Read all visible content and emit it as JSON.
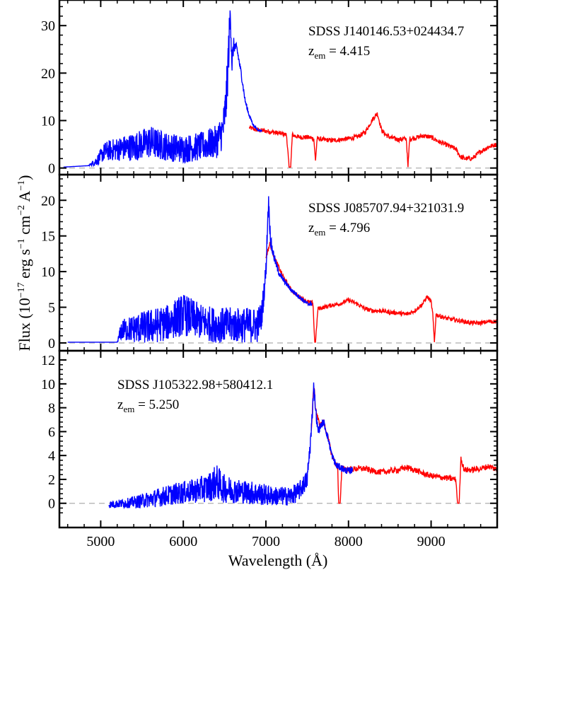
{
  "chart_data": {
    "type": "line",
    "xlabel": "Wavelength (Å)",
    "ylabel_parts": {
      "flux": "Flux (10",
      "exp": "−17",
      "erg": " erg s",
      "s_exp": "−1",
      "cm": " cm",
      "cm_exp": "−2",
      "A": " A",
      "A_exp": "−1",
      "close": ")"
    },
    "xlim": [
      4500,
      9800
    ],
    "x_ticks": [
      5000,
      6000,
      7000,
      8000,
      9000
    ],
    "x_tick_labels": [
      "5000",
      "6000",
      "7000",
      "8000",
      "9000"
    ],
    "series_colors": {
      "observed": "#0000ff",
      "model": "#ff0000",
      "zero": "#bbbbbb"
    },
    "panels": [
      {
        "name": "SDSS J140146.53+024434.7",
        "z_label": "z",
        "z_sub": "em",
        "z_value": " = 4.415",
        "ylim": [
          -0.5,
          34.5
        ],
        "y_ticks": [
          0,
          10,
          20,
          30
        ],
        "y_tick_labels": [
          "0",
          "10",
          "20",
          "30"
        ],
        "observed": {
          "x": [
            4550,
            4850,
            4950,
            5050,
            5200,
            5400,
            5600,
            5800,
            6000,
            6200,
            6400,
            6480,
            6520,
            6550,
            6570,
            6590,
            6610,
            6650,
            6700,
            6750,
            6800,
            6850,
            6900,
            7000,
            7100,
            7200,
            7300,
            7400,
            7500,
            7600,
            7700,
            7800,
            7900,
            8000,
            8100,
            8200,
            8300,
            8350,
            8400,
            8500,
            8600,
            8700,
            8800,
            8900,
            9000,
            9100,
            9200,
            9300,
            9400,
            9500,
            9600,
            9700,
            9800
          ],
          "y": [
            0.2,
            0.5,
            1.5,
            3.5,
            4.0,
            4.5,
            5.5,
            4.5,
            4.0,
            4.5,
            5.5,
            8,
            14,
            25,
            33,
            22,
            26,
            25,
            20,
            14,
            11,
            9,
            8,
            7.8,
            7.5,
            7.2,
            7.0,
            6.5,
            6.5,
            6.8,
            6.0,
            5.8,
            6.0,
            6.2,
            6.5,
            7.5,
            10.5,
            11.5,
            8.0,
            6.5,
            6.0,
            6.2,
            6.3,
            6.8,
            6.5,
            5.5,
            4.8,
            4.0,
            2.8,
            2.0,
            3.0,
            4.5,
            5.0
          ],
          "noise": [
            0,
            0,
            1.0,
            2.0,
            2.5,
            3.0,
            3.5,
            3.0,
            3.0,
            3.0,
            3.5,
            4.0,
            5.0,
            5.0,
            3.0,
            3.0,
            1.5,
            1.0,
            0.8,
            0.6,
            0.4,
            0.3,
            0.2,
            0.2,
            0.2,
            0.2,
            0.2,
            0.2,
            0.2,
            0.2,
            0.2,
            0.2,
            0.2,
            0.2,
            0.2,
            0.2,
            0.2,
            0.2,
            0.2,
            0.2,
            0.2,
            0.2,
            0.2,
            0.2,
            0.2,
            0.2,
            0.2,
            0.2,
            0.2,
            0.2,
            0.2,
            0.2,
            0.2
          ],
          "x_max": 6950
        },
        "model": {
          "x": [
            6800,
            6900,
            7000,
            7100,
            7200,
            7250,
            7280,
            7300,
            7320,
            7400,
            7500,
            7580,
            7600,
            7620,
            7700,
            7800,
            7900,
            8000,
            8100,
            8200,
            8300,
            8350,
            8400,
            8450,
            8500,
            8600,
            8700,
            8720,
            8740,
            8800,
            8900,
            9000,
            9100,
            9200,
            9300,
            9350,
            9400,
            9500,
            9600,
            9700,
            9800
          ],
          "y": [
            8.5,
            8.0,
            7.8,
            7.5,
            7.2,
            7.0,
            0.2,
            0.2,
            7.0,
            6.5,
            6.5,
            6.2,
            1.5,
            6.2,
            6.0,
            5.8,
            6.0,
            6.2,
            6.5,
            7.5,
            10.5,
            11.5,
            8.0,
            7.0,
            6.5,
            6.0,
            6.2,
            0.2,
            6.2,
            6.3,
            6.8,
            6.5,
            5.5,
            4.8,
            4.0,
            2.5,
            2.0,
            2.0,
            3.5,
            4.5,
            5.0
          ],
          "noise": 0.5
        }
      },
      {
        "name": "SDSS J085707.94+321031.9",
        "z_label": "z",
        "z_sub": "em",
        "z_value": " = 4.796",
        "ylim": [
          -0.5,
          23.0
        ],
        "y_ticks": [
          0,
          5,
          10,
          15,
          20
        ],
        "y_tick_labels": [
          "0",
          "5",
          "10",
          "15",
          "20"
        ],
        "observed": {
          "x": [
            4600,
            5000,
            5200,
            5250,
            5400,
            5600,
            5800,
            6000,
            6200,
            6400,
            6600,
            6800,
            6900,
            6950,
            7000,
            7030,
            7060,
            7100,
            7150,
            7200,
            7300,
            7400,
            7500,
            7550,
            7600
          ],
          "y": [
            0.1,
            0.1,
            0.1,
            1.8,
            2.0,
            2.3,
            2.8,
            4.0,
            3.0,
            2.5,
            2.5,
            2.5,
            2.5,
            4.0,
            10,
            20,
            14,
            12,
            10,
            9,
            7.5,
            6.5,
            5.5,
            5.5,
            5.6
          ],
          "noise": [
            0,
            0,
            0,
            1.5,
            2.0,
            2.5,
            2.5,
            3.0,
            2.5,
            2.5,
            2.5,
            2.5,
            2.5,
            2.0,
            1.5,
            1.5,
            1.0,
            0.6,
            0.5,
            0.4,
            0.3,
            0.3,
            0.3,
            0.3,
            0.3
          ],
          "x_max": 7560
        },
        "model": {
          "x": [
            7000,
            7050,
            7100,
            7200,
            7300,
            7400,
            7500,
            7570,
            7590,
            7600,
            7630,
            7700,
            7800,
            7900,
            8000,
            8100,
            8200,
            8300,
            8400,
            8500,
            8600,
            8700,
            8800,
            8900,
            8950,
            9000,
            9020,
            9040,
            9060,
            9100,
            9200,
            9300,
            9400,
            9500,
            9600,
            9700,
            9800
          ],
          "y": [
            12,
            14,
            12,
            9.5,
            7.5,
            6.5,
            5.8,
            5.6,
            0.1,
            0.1,
            4.8,
            5.0,
            5.3,
            5.5,
            6.0,
            5.5,
            4.8,
            4.5,
            4.5,
            4.3,
            4.2,
            4.0,
            4.5,
            5.5,
            6.5,
            5.8,
            4.0,
            0.1,
            4.0,
            3.8,
            3.4,
            3.2,
            3.0,
            2.8,
            2.8,
            3.0,
            3.0
          ],
          "noise": 0.3
        }
      },
      {
        "name": "SDSS J105322.98+580412.1",
        "z_label": "z",
        "z_sub": "em",
        "z_value": " = 5.250",
        "ylim": [
          -1.2,
          12.3
        ],
        "y_ticks": [
          0,
          2,
          4,
          6,
          8,
          10,
          12
        ],
        "y_tick_labels": [
          "0",
          "2",
          "4",
          "6",
          "8",
          "10",
          "12"
        ],
        "observed": {
          "x": [
            5100,
            5300,
            5500,
            5700,
            5900,
            6100,
            6300,
            6400,
            6500,
            6700,
            6900,
            7100,
            7300,
            7400,
            7500,
            7550,
            7580,
            7600,
            7630,
            7660,
            7700,
            7750,
            7800,
            7850,
            7900,
            7950,
            8000,
            8050
          ],
          "y": [
            -0.1,
            0.0,
            0.2,
            0.5,
            0.8,
            1.0,
            1.3,
            1.8,
            1.2,
            1.0,
            0.8,
            0.6,
            0.6,
            1.0,
            2.0,
            6.0,
            10.0,
            8.0,
            6.0,
            6.5,
            6.8,
            5.5,
            4.0,
            3.2,
            3.0,
            2.8,
            2.7,
            2.8
          ],
          "noise": [
            0.3,
            0.4,
            0.6,
            0.8,
            0.9,
            1.0,
            1.2,
            1.5,
            1.2,
            1.0,
            1.0,
            0.8,
            0.8,
            0.8,
            0.8,
            0.8,
            0.5,
            0.5,
            0.4,
            0.3,
            0.3,
            0.3,
            0.3,
            0.3,
            0.3,
            0.3,
            0.3,
            0.3
          ],
          "x_max": 8050
        },
        "model": {
          "x": [
            7550,
            7580,
            7600,
            7650,
            7700,
            7750,
            7800,
            7850,
            7870,
            7880,
            7900,
            7920,
            8000,
            8100,
            8200,
            8300,
            8400,
            8500,
            8600,
            8700,
            8800,
            8900,
            9000,
            9100,
            9200,
            9300,
            9320,
            9340,
            9360,
            9400,
            9500,
            9600,
            9700,
            9800
          ],
          "y": [
            6.0,
            10.0,
            8.0,
            6.5,
            6.8,
            5.5,
            4.0,
            3.2,
            3.0,
            0.0,
            0.0,
            3.0,
            2.8,
            2.9,
            2.9,
            2.7,
            2.6,
            2.7,
            2.8,
            3.0,
            2.8,
            2.5,
            2.3,
            2.2,
            2.1,
            2.0,
            0.0,
            0.0,
            3.8,
            2.8,
            2.8,
            2.9,
            3.1,
            2.8
          ],
          "noise": 0.25
        }
      }
    ]
  }
}
